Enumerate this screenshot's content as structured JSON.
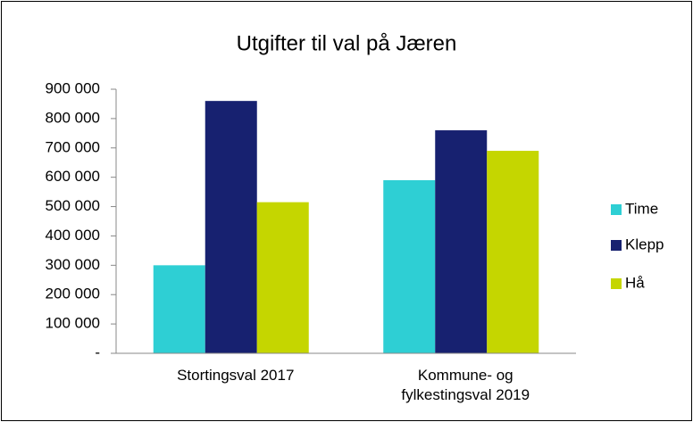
{
  "chart_data": {
    "type": "bar",
    "title": "Utgifter til val på Jæren",
    "categories": [
      "Stortingsval 2017",
      "Kommune- og fylkestingsval 2019"
    ],
    "series": [
      {
        "name": "Time",
        "color": "#2ecfd4",
        "values": [
          300000,
          590000
        ]
      },
      {
        "name": "Klepp",
        "color": "#172170",
        "values": [
          860000,
          760000
        ]
      },
      {
        "name": "Hå",
        "color": "#c5d600",
        "values": [
          515000,
          690000
        ]
      }
    ],
    "ylim": [
      0,
      900000
    ],
    "yticks": [
      {
        "value": 0,
        "label": "-"
      },
      {
        "value": 100000,
        "label": "100 000"
      },
      {
        "value": 200000,
        "label": "200 000"
      },
      {
        "value": 300000,
        "label": "300 000"
      },
      {
        "value": 400000,
        "label": "400 000"
      },
      {
        "value": 500000,
        "label": "500 000"
      },
      {
        "value": 600000,
        "label": "600 000"
      },
      {
        "value": 700000,
        "label": "700 000"
      },
      {
        "value": 800000,
        "label": "800 000"
      },
      {
        "value": 900000,
        "label": "900 000"
      }
    ],
    "legend": "right"
  }
}
